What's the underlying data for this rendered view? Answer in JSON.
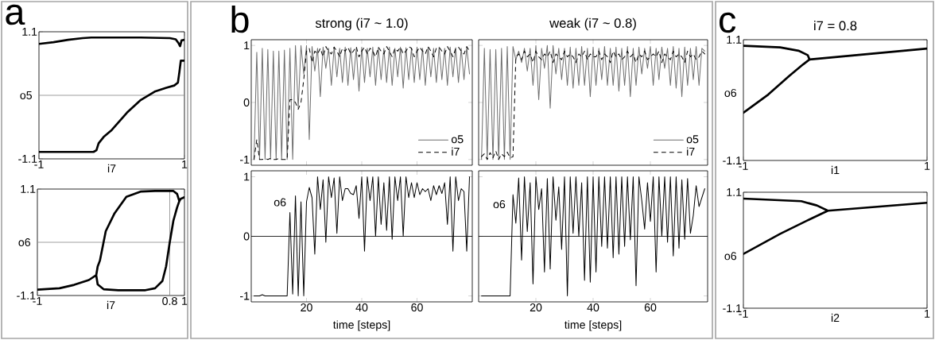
{
  "chart_data": [
    {
      "type": "line",
      "ylabel": "o5",
      "xlabel": "i7",
      "annotations": [
        "a"
      ],
      "xlim": [
        -1,
        1
      ],
      "ylim": [
        -1.1,
        1.1
      ],
      "xticks": [
        -1,
        1
      ],
      "yticks": [
        -1.1,
        1.1
      ],
      "ref_lines": [
        {
          "axis": "y",
          "value": 0,
          "color": "#8c8c8c"
        }
      ],
      "series": [
        {
          "color": "#000000",
          "x": [
            -1,
            -0.8,
            -0.6,
            -0.4,
            -0.28,
            0,
            0.4,
            0.8,
            0.88,
            0.92,
            0.94,
            0.96,
            1
          ],
          "values": [
            0.89,
            0.92,
            0.96,
            0.99,
            1.0,
            1.0,
            1.0,
            0.99,
            0.97,
            0.9,
            0.85,
            0.95,
            0.96
          ]
        },
        {
          "color": "#000000",
          "x": [
            -1,
            -0.6,
            -0.25,
            -0.21,
            -0.18,
            -0.11,
            0.0,
            0.21,
            0.4,
            0.6,
            0.75,
            0.86,
            0.91,
            0.93,
            0.95,
            1
          ],
          "values": [
            -0.98,
            -0.98,
            -0.98,
            -0.95,
            -0.83,
            -0.72,
            -0.6,
            -0.3,
            -0.08,
            0.07,
            0.13,
            0.17,
            0.22,
            0.4,
            0.6,
            0.6
          ]
        }
      ]
    },
    {
      "type": "line",
      "ylabel": "o6",
      "xlabel": "i7",
      "xlim": [
        -1,
        1
      ],
      "ylim": [
        -1.1,
        1.1
      ],
      "xticks": [
        -1,
        0.8,
        1
      ],
      "yticks": [
        -1.1,
        1.1
      ],
      "ref_lines": [
        {
          "axis": "y",
          "value": 0,
          "color": "#8c8c8c"
        },
        {
          "axis": "x",
          "value": 0.8,
          "color": "#8c8c8c"
        }
      ],
      "series": [
        {
          "color": "#000000",
          "x": [
            -1,
            -0.7,
            -0.5,
            -0.3,
            -0.2,
            -0.18,
            -0.15,
            -0.07,
            0.05,
            0.21,
            0.41,
            0.6,
            0.85,
            0.9,
            0.93,
            0.95,
            1,
            0.95,
            0.93,
            0.9,
            0.85,
            0.8,
            0.75,
            0.7,
            0.6,
            0.47,
            0.1,
            -0.1,
            -0.18,
            -0.2
          ],
          "values": [
            -0.98,
            -0.95,
            -0.88,
            -0.78,
            -0.68,
            -0.5,
            -0.38,
            0.23,
            0.6,
            0.94,
            1.05,
            1.06,
            1.06,
            1.0,
            0.85,
            0.9,
            0.93,
            0.9,
            0.85,
            0.72,
            0.45,
            0.0,
            -0.5,
            -0.8,
            -0.95,
            -0.99,
            -0.99,
            -0.97,
            -0.87,
            -0.68
          ]
        }
      ]
    },
    {
      "type": "line",
      "title": "strong (i7 ~ 1.0)",
      "annotations": [
        "b"
      ],
      "xlim": [
        0,
        80
      ],
      "ylim": [
        -1.1,
        1.1
      ],
      "xticks": [
        20,
        40,
        60
      ],
      "yticks": [
        -1,
        0,
        1
      ],
      "tick_labels": "y",
      "legend": "bottom right",
      "x": [
        1,
        2,
        3,
        4,
        5,
        6,
        7,
        8,
        9,
        10,
        11,
        12,
        13,
        14,
        15,
        16,
        17,
        18,
        19,
        20,
        21,
        22,
        23,
        24,
        25,
        26,
        27,
        28,
        29,
        30,
        31,
        32,
        33,
        34,
        35,
        36,
        37,
        38,
        39,
        40,
        41,
        42,
        43,
        44,
        45,
        46,
        47,
        48,
        49,
        50,
        51,
        52,
        53,
        54,
        55,
        56,
        57,
        58,
        59,
        60,
        61,
        62,
        63,
        64,
        65,
        66,
        67,
        68,
        69,
        70,
        71,
        72,
        73,
        74,
        75,
        76,
        77,
        78,
        79
      ],
      "series": [
        {
          "name": "o5",
          "color": "#6e6e6e",
          "line_style": "solid",
          "values": [
            -1,
            0.88,
            -1,
            0.95,
            -1,
            0.93,
            -1,
            0.9,
            -1,
            0.9,
            -1,
            0.92,
            -1,
            0.95,
            -1,
            1.0,
            -0.1,
            1.0,
            0.5,
            1.0,
            -0.65,
            0.98,
            0.55,
            0.95,
            0.1,
            0.97,
            0.6,
            0.95,
            0.3,
            0.97,
            0.45,
            0.95,
            0.35,
            0.97,
            0.3,
            0.96,
            0.4,
            0.95,
            0.2,
            0.97,
            0.35,
            0.95,
            0.45,
            0.97,
            0.3,
            0.96,
            0.4,
            0.95,
            0.35,
            0.97,
            0.3,
            0.95,
            0.45,
            0.97,
            0.25,
            0.96,
            0.4,
            0.95,
            0.35,
            0.97,
            0.4,
            0.95,
            0.3,
            0.97,
            0.45,
            0.95,
            0.35,
            0.97,
            0.4,
            0.95,
            0.3,
            0.97,
            0.45,
            0.96,
            0.35,
            0.95,
            0.4,
            0.97,
            0.5
          ]
        },
        {
          "name": "i7",
          "color": "#000000",
          "line_style": "dashed",
          "values": [
            -1,
            -0.65,
            -1,
            -1,
            -0.98,
            -1,
            -0.98,
            -1,
            -1,
            -0.98,
            -1,
            -1,
            -1,
            0.05,
            0.05,
            0.0,
            -0.12,
            0.0,
            0.4,
            0.9,
            0.95,
            0.7,
            0.9,
            0.85,
            0.95,
            0.8,
            0.98,
            0.9,
            0.85,
            0.97,
            0.9,
            0.8,
            0.95,
            0.9,
            0.97,
            0.85,
            0.9,
            0.98,
            0.8,
            0.9,
            0.97,
            0.85,
            0.95,
            0.9,
            0.8,
            0.97,
            0.9,
            0.85,
            0.98,
            0.9,
            0.8,
            0.95,
            0.9,
            0.97,
            0.85,
            0.9,
            0.98,
            0.95,
            0.8,
            0.9,
            0.97,
            0.9,
            0.85,
            0.98,
            0.9,
            0.8,
            0.95,
            0.97,
            0.9,
            0.85,
            0.98,
            0.9,
            0.8,
            0.95,
            0.97,
            0.9,
            0.85,
            0.98,
            0.9
          ]
        }
      ]
    },
    {
      "type": "line",
      "title": "weak (i7 ~ 0.8)",
      "xlim": [
        0,
        80
      ],
      "ylim": [
        -1.1,
        1.1
      ],
      "xticks": [
        20,
        40,
        60
      ],
      "yticks": [
        -1,
        0,
        1
      ],
      "tick_labels": false,
      "legend": "bottom right",
      "x": [
        1,
        2,
        3,
        4,
        5,
        6,
        7,
        8,
        9,
        10,
        11,
        12,
        13,
        14,
        15,
        16,
        17,
        18,
        19,
        20,
        21,
        22,
        23,
        24,
        25,
        26,
        27,
        28,
        29,
        30,
        31,
        32,
        33,
        34,
        35,
        36,
        37,
        38,
        39,
        40,
        41,
        42,
        43,
        44,
        45,
        46,
        47,
        48,
        49,
        50,
        51,
        52,
        53,
        54,
        55,
        56,
        57,
        58,
        59,
        60,
        61,
        62,
        63,
        64,
        65,
        66,
        67,
        68,
        69,
        70,
        71,
        72,
        73,
        74,
        75,
        76,
        77,
        78,
        79
      ],
      "series": [
        {
          "name": "o5",
          "color": "#6e6e6e",
          "line_style": "solid",
          "values": [
            -1,
            0.95,
            -1,
            0.93,
            -1,
            0.93,
            -1,
            0.95,
            -1,
            0.98,
            -1,
            0.98,
            0.75,
            0.9,
            0.7,
            0.95,
            0.55,
            0.95,
            0.3,
            1.0,
            0.05,
            0.95,
            0.6,
            1.0,
            -0.1,
            1.0,
            0.5,
            0.95,
            0.4,
            0.95,
            0.3,
            0.97,
            0.25,
            0.95,
            0.3,
            0.98,
            0.3,
            0.95,
            0.1,
            0.97,
            0.3,
            0.95,
            0.4,
            0.98,
            0.3,
            0.95,
            0.3,
            0.97,
            0.2,
            0.95,
            0.3,
            0.98,
            0.1,
            0.95,
            0.3,
            0.97,
            0.5,
            0.95,
            0.6,
            0.98,
            0.3,
            0.95,
            0.4,
            0.97,
            0.6,
            0.95,
            0.3,
            0.98,
            0.25,
            0.95,
            0.1,
            0.97,
            0.3,
            0.95,
            0.4,
            0.98,
            0.3,
            0.95,
            0.9
          ]
        },
        {
          "name": "i7",
          "color": "#000000",
          "line_style": "dashed",
          "values": [
            -0.95,
            -0.9,
            -1,
            -0.88,
            -0.97,
            -0.85,
            -1,
            -0.9,
            -0.95,
            -0.87,
            -0.97,
            -0.95,
            0.8,
            0.85,
            0.75,
            0.9,
            0.8,
            0.85,
            0.7,
            0.9,
            0.8,
            0.75,
            0.85,
            0.8,
            0.9,
            0.7,
            0.85,
            0.8,
            0.75,
            0.9,
            0.8,
            0.85,
            0.8,
            0.7,
            0.85,
            0.8,
            0.9,
            0.75,
            0.85,
            0.8,
            0.8,
            0.9,
            0.75,
            0.85,
            0.8,
            0.7,
            0.9,
            0.8,
            0.85,
            0.75,
            0.8,
            0.9,
            0.8,
            0.85,
            0.7,
            0.85,
            0.8,
            0.9,
            0.75,
            0.8,
            0.85,
            0.8,
            0.9,
            0.7,
            0.85,
            0.8,
            0.75,
            0.9,
            0.8,
            0.85,
            0.8,
            0.7,
            0.9,
            0.8,
            0.85,
            0.75,
            0.8,
            0.9,
            0.85
          ]
        }
      ]
    },
    {
      "type": "line",
      "ylabel": "o6",
      "xlabel": "time [steps]",
      "xlim": [
        0,
        80
      ],
      "ylim": [
        -1.1,
        1.1
      ],
      "xticks": [
        20,
        40,
        60
      ],
      "yticks": [
        -1,
        0,
        1
      ],
      "ref_lines": [
        {
          "axis": "y",
          "value": 0,
          "color": "#000000"
        }
      ],
      "x": [
        1,
        2,
        3,
        4,
        5,
        6,
        7,
        8,
        9,
        10,
        11,
        12,
        13,
        14,
        15,
        16,
        17,
        18,
        19,
        20,
        21,
        22,
        23,
        24,
        25,
        26,
        27,
        28,
        29,
        30,
        31,
        32,
        33,
        34,
        35,
        36,
        37,
        38,
        39,
        40,
        41,
        42,
        43,
        44,
        45,
        46,
        47,
        48,
        49,
        50,
        51,
        52,
        53,
        54,
        55,
        56,
        57,
        58,
        59,
        60,
        61,
        62,
        63,
        64,
        65,
        66,
        67,
        68,
        69,
        70,
        71,
        72,
        73,
        74,
        75,
        76,
        77,
        78,
        79
      ],
      "series": [
        {
          "color": "#000000",
          "values": [
            -1,
            -1,
            -1,
            -0.98,
            -1,
            -1,
            -1,
            -1,
            -1,
            -1,
            -1,
            -1,
            -1,
            0.4,
            -0.97,
            0.68,
            -1,
            0.58,
            -1,
            0.58,
            0.82,
            0.65,
            -0.3,
            1.0,
            0.45,
            0.95,
            -0.1,
            1.0,
            0.65,
            0.98,
            0.05,
            1.0,
            0.6,
            0.8,
            0.8,
            0.72,
            0.7,
            0.85,
            0.3,
            1.0,
            -0.25,
            1.0,
            0.6,
            1.0,
            0.0,
            1.0,
            0.2,
            0.9,
            0.1,
            1.0,
            -0.05,
            1.0,
            0.6,
            1.0,
            0.0,
            1.0,
            0.65,
            0.9,
            0.65,
            0.9,
            0.7,
            0.8,
            0.75,
            0.8,
            0.6,
            0.85,
            0.7,
            0.85,
            0.72,
            0.9,
            0.2,
            1.0,
            -0.25,
            1.0,
            0.6,
            0.8,
            0.75,
            -0.25,
            1.0
          ]
        }
      ]
    },
    {
      "type": "line",
      "ylabel": "o6",
      "xlabel": "time [steps]",
      "xlim": [
        0,
        80
      ],
      "ylim": [
        -1.1,
        1.1
      ],
      "xticks": [
        20,
        40,
        60
      ],
      "yticks": [
        -1,
        0,
        1
      ],
      "tick_labels": "x",
      "ref_lines": [
        {
          "axis": "y",
          "value": 0,
          "color": "#000000"
        }
      ],
      "x": [
        1,
        2,
        3,
        4,
        5,
        6,
        7,
        8,
        9,
        10,
        11,
        12,
        13,
        14,
        15,
        16,
        17,
        18,
        19,
        20,
        21,
        22,
        23,
        24,
        25,
        26,
        27,
        28,
        29,
        30,
        31,
        32,
        33,
        34,
        35,
        36,
        37,
        38,
        39,
        40,
        41,
        42,
        43,
        44,
        45,
        46,
        47,
        48,
        49,
        50,
        51,
        52,
        53,
        54,
        55,
        56,
        57,
        58,
        59,
        60,
        61,
        62,
        63,
        64,
        65,
        66,
        67,
        68,
        69,
        70,
        71,
        72,
        73,
        74,
        75,
        76,
        77,
        78,
        79
      ],
      "series": [
        {
          "color": "#000000",
          "values": [
            -1,
            -1,
            -1,
            -1,
            -1,
            -1,
            -1,
            -1,
            -1,
            -1,
            -1,
            0.7,
            0.22,
            0.98,
            -0.4,
            1.0,
            0.08,
            0.9,
            -0.8,
            1.0,
            0.45,
            0.8,
            -0.6,
            0.97,
            -0.55,
            1.0,
            0.27,
            0.83,
            -0.22,
            1.0,
            -1.0,
            1.0,
            0.05,
            1.0,
            0.0,
            0.9,
            -0.74,
            1.0,
            -0.77,
            1.0,
            -0.6,
            1.0,
            -0.17,
            1.0,
            -0.2,
            1.0,
            -0.36,
            1.0,
            -0.3,
            1.0,
            -0.17,
            1.0,
            -0.06,
            1.0,
            -0.83,
            1.0,
            0.6,
            0.12,
            0.9,
            0.25,
            1.0,
            -0.6,
            1.0,
            0.0,
            1.0,
            -0.1,
            1.0,
            -0.33,
            1.0,
            -0.2,
            0.95,
            -0.05,
            0.97,
            0.05,
            0.35,
            0.85,
            0.5,
            0.65,
            0.8
          ]
        }
      ]
    },
    {
      "type": "line",
      "title": "i7 = 0.8",
      "ylabel": "o6",
      "xlabel": "i1",
      "annotations": [
        "c"
      ],
      "xlim": [
        -1,
        1
      ],
      "ylim": [
        -1.1,
        1.1
      ],
      "xticks": [
        -1,
        1
      ],
      "yticks": [
        -1.1,
        1.1
      ],
      "series": [
        {
          "color": "#000000",
          "x": [
            -1,
            -0.6,
            -0.4,
            -0.3,
            -0.28,
            1,
            -0.28,
            -0.35,
            -0.5,
            -0.73,
            -1
          ],
          "values": [
            0.99,
            0.96,
            0.9,
            0.82,
            0.74,
            0.94,
            0.74,
            0.65,
            0.44,
            0.1,
            -0.23
          ]
        }
      ]
    },
    {
      "type": "line",
      "ylabel": "o6",
      "xlabel": "i2",
      "xlim": [
        -1,
        1
      ],
      "ylim": [
        -1.1,
        1.1
      ],
      "xticks": [
        -1,
        1
      ],
      "yticks": [
        -1.1,
        1.1
      ],
      "series": [
        {
          "color": "#000000",
          "x": [
            -1,
            -0.37,
            -0.2,
            -0.08,
            1,
            -0.08,
            -0.31,
            -0.6,
            -1
          ],
          "values": [
            0.98,
            0.93,
            0.85,
            0.75,
            0.9,
            0.75,
            0.56,
            0.31,
            -0.07
          ]
        }
      ]
    }
  ]
}
